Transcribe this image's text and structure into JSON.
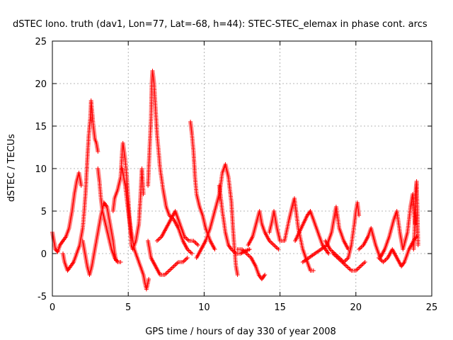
{
  "chart_data": {
    "type": "scatter",
    "title": "dSTEC Iono. truth (dav1, Lon=77, Lat=-68, h=44): STEC-STEC_elemax in phase cont. arcs",
    "xlabel": "GPS time / hours of day 330 of year 2008",
    "ylabel": "dSTEC  / TECUs",
    "xlim": [
      0,
      25
    ],
    "ylim": [
      -5,
      25
    ],
    "xticks": [
      0,
      5,
      10,
      15,
      20,
      25
    ],
    "yticks": [
      -5,
      0,
      5,
      10,
      15,
      20,
      25
    ],
    "grid": true,
    "marker": "+",
    "series": [
      {
        "name": "dSTEC",
        "color": "#ff0000",
        "arcs": [
          [
            [
              0.0,
              2.5
            ],
            [
              0.1,
              1.5
            ],
            [
              0.2,
              0.5
            ],
            [
              0.35,
              0.2
            ],
            [
              0.5,
              1.0
            ],
            [
              0.7,
              1.5
            ],
            [
              0.9,
              2.0
            ],
            [
              1.1,
              3.0
            ],
            [
              1.3,
              5.0
            ],
            [
              1.45,
              7.0
            ],
            [
              1.6,
              8.5
            ],
            [
              1.75,
              9.5
            ],
            [
              1.9,
              8.0
            ]
          ],
          [
            [
              0.7,
              0.0
            ],
            [
              0.8,
              -1.0
            ],
            [
              0.9,
              -1.5
            ],
            [
              1.0,
              -2.0
            ],
            [
              1.2,
              -1.5
            ],
            [
              1.4,
              -1.0
            ],
            [
              1.6,
              0.0
            ],
            [
              1.8,
              1.0
            ],
            [
              2.0,
              3.0
            ],
            [
              2.1,
              5.0
            ],
            [
              2.2,
              7.5
            ],
            [
              2.3,
              11.0
            ],
            [
              2.4,
              14.0
            ],
            [
              2.5,
              16.0
            ],
            [
              2.55,
              18.0
            ],
            [
              2.7,
              15.0
            ],
            [
              2.8,
              13.5
            ],
            [
              2.9,
              13.0
            ],
            [
              3.0,
              12.0
            ]
          ],
          [
            [
              2.0,
              1.5
            ],
            [
              2.1,
              0.5
            ],
            [
              2.2,
              -0.5
            ],
            [
              2.3,
              -1.5
            ],
            [
              2.45,
              -2.5
            ],
            [
              2.6,
              -1.5
            ],
            [
              2.8,
              0.5
            ],
            [
              3.0,
              2.5
            ],
            [
              3.2,
              4.5
            ],
            [
              3.4,
              6.0
            ],
            [
              3.6,
              5.5
            ],
            [
              3.8,
              3.5
            ],
            [
              4.0,
              1.5
            ],
            [
              4.1,
              0.0
            ],
            [
              4.2,
              -0.8
            ]
          ],
          [
            [
              3.0,
              10.0
            ],
            [
              3.1,
              8.5
            ],
            [
              3.2,
              6.5
            ],
            [
              3.3,
              5.0
            ],
            [
              3.5,
              3.5
            ],
            [
              3.7,
              2.0
            ],
            [
              3.9,
              0.5
            ],
            [
              4.1,
              -0.5
            ],
            [
              4.3,
              -1.0
            ],
            [
              4.5,
              -1.0
            ]
          ],
          [
            [
              4.0,
              5.0
            ],
            [
              4.1,
              6.5
            ],
            [
              4.3,
              7.5
            ],
            [
              4.5,
              9.0
            ],
            [
              4.6,
              12.0
            ],
            [
              4.65,
              13.0
            ],
            [
              4.8,
              11.0
            ],
            [
              4.9,
              9.0
            ],
            [
              5.0,
              6.5
            ],
            [
              5.1,
              3.5
            ],
            [
              5.2,
              1.0
            ],
            [
              5.3,
              0.5
            ],
            [
              5.5,
              1.5
            ],
            [
              5.7,
              3.5
            ],
            [
              5.8,
              6.5
            ],
            [
              5.9,
              10.0
            ],
            [
              6.0,
              7.0
            ]
          ],
          [
            [
              4.6,
              10.0
            ],
            [
              4.8,
              8.0
            ],
            [
              5.0,
              5.0
            ],
            [
              5.2,
              2.5
            ],
            [
              5.4,
              0.5
            ],
            [
              5.6,
              -0.5
            ],
            [
              5.8,
              -1.5
            ],
            [
              6.0,
              -2.5
            ],
            [
              6.1,
              -3.5
            ],
            [
              6.2,
              -4.2
            ],
            [
              6.35,
              -3.0
            ]
          ],
          [
            [
              6.3,
              8.0
            ],
            [
              6.4,
              12.0
            ],
            [
              6.5,
              16.0
            ],
            [
              6.55,
              20.0
            ],
            [
              6.6,
              21.5
            ],
            [
              6.7,
              20.0
            ],
            [
              6.8,
              17.0
            ],
            [
              6.9,
              14.0
            ],
            [
              7.0,
              12.0
            ],
            [
              7.1,
              10.0
            ],
            [
              7.3,
              7.5
            ],
            [
              7.5,
              5.5
            ],
            [
              7.7,
              4.5
            ],
            [
              8.0,
              4.0
            ],
            [
              8.3,
              3.0
            ],
            [
              8.6,
              1.5
            ],
            [
              8.9,
              0.5
            ],
            [
              9.2,
              0.0
            ]
          ],
          [
            [
              6.3,
              1.5
            ],
            [
              6.5,
              -0.5
            ],
            [
              6.8,
              -1.5
            ],
            [
              7.1,
              -2.5
            ],
            [
              7.4,
              -2.5
            ],
            [
              7.7,
              -2.0
            ],
            [
              8.0,
              -1.5
            ],
            [
              8.3,
              -1.0
            ],
            [
              8.6,
              -1.0
            ],
            [
              8.9,
              -0.5
            ]
          ],
          [
            [
              6.9,
              1.5
            ],
            [
              7.2,
              2.0
            ],
            [
              7.5,
              3.0
            ],
            [
              7.8,
              4.0
            ],
            [
              8.1,
              5.0
            ],
            [
              8.4,
              3.5
            ],
            [
              8.7,
              2.0
            ],
            [
              9.0,
              1.5
            ],
            [
              9.3,
              1.5
            ],
            [
              9.6,
              1.0
            ]
          ],
          [
            [
              9.1,
              15.5
            ],
            [
              9.2,
              14.0
            ],
            [
              9.3,
              12.0
            ],
            [
              9.4,
              9.0
            ],
            [
              9.5,
              7.0
            ],
            [
              9.7,
              5.5
            ],
            [
              9.9,
              4.5
            ],
            [
              10.1,
              3.0
            ],
            [
              10.4,
              1.5
            ],
            [
              10.7,
              0.5
            ]
          ],
          [
            [
              9.5,
              -0.5
            ],
            [
              9.8,
              0.5
            ],
            [
              10.1,
              1.5
            ],
            [
              10.4,
              3.0
            ],
            [
              10.7,
              5.0
            ],
            [
              11.0,
              7.0
            ],
            [
              11.2,
              9.5
            ],
            [
              11.4,
              10.5
            ],
            [
              11.6,
              9.0
            ],
            [
              11.8,
              6.0
            ],
            [
              11.9,
              3.0
            ],
            [
              12.0,
              0.5
            ],
            [
              12.1,
              -1.5
            ],
            [
              12.2,
              -2.5
            ]
          ],
          [
            [
              11.0,
              8.0
            ],
            [
              11.2,
              5.0
            ],
            [
              11.4,
              2.5
            ],
            [
              11.6,
              1.0
            ],
            [
              11.8,
              0.5
            ],
            [
              12.1,
              0.0
            ],
            [
              12.4,
              0.0
            ],
            [
              12.7,
              0.3
            ],
            [
              13.0,
              0.5
            ]
          ],
          [
            [
              12.2,
              0.5
            ],
            [
              12.5,
              0.5
            ],
            [
              12.8,
              0.0
            ],
            [
              13.1,
              -0.5
            ],
            [
              13.4,
              -1.5
            ],
            [
              13.6,
              -2.5
            ],
            [
              13.8,
              -3.0
            ],
            [
              14.0,
              -2.5
            ]
          ],
          [
            [
              12.9,
              1.0
            ],
            [
              13.2,
              2.0
            ],
            [
              13.5,
              4.0
            ],
            [
              13.65,
              5.0
            ],
            [
              13.8,
              3.5
            ],
            [
              14.0,
              2.5
            ],
            [
              14.3,
              1.5
            ],
            [
              14.6,
              1.0
            ],
            [
              14.9,
              0.5
            ]
          ],
          [
            [
              14.3,
              2.5
            ],
            [
              14.5,
              4.0
            ],
            [
              14.6,
              5.0
            ],
            [
              14.8,
              3.0
            ],
            [
              15.0,
              1.5
            ],
            [
              15.3,
              1.5
            ],
            [
              15.6,
              4.0
            ],
            [
              15.8,
              5.5
            ],
            [
              15.95,
              6.5
            ],
            [
              16.2,
              3.0
            ],
            [
              16.5,
              0.5
            ],
            [
              16.8,
              -1.0
            ],
            [
              17.0,
              -2.0
            ],
            [
              17.2,
              -2.0
            ]
          ],
          [
            [
              16.0,
              1.5
            ],
            [
              16.4,
              3.0
            ],
            [
              16.8,
              4.5
            ],
            [
              17.0,
              5.0
            ],
            [
              17.3,
              3.5
            ],
            [
              17.6,
              2.0
            ],
            [
              17.8,
              1.0
            ],
            [
              18.0,
              0.5
            ],
            [
              18.2,
              0.0
            ]
          ],
          [
            [
              16.5,
              -1.0
            ],
            [
              16.9,
              -0.5
            ],
            [
              17.3,
              0.0
            ],
            [
              17.7,
              0.5
            ],
            [
              18.1,
              1.0
            ],
            [
              18.4,
              2.5
            ],
            [
              18.6,
              4.5
            ],
            [
              18.7,
              5.5
            ],
            [
              18.9,
              3.0
            ],
            [
              19.2,
              1.5
            ],
            [
              19.5,
              0.5
            ]
          ],
          [
            [
              18.0,
              1.5
            ],
            [
              18.3,
              0.5
            ],
            [
              18.6,
              0.0
            ],
            [
              18.9,
              -0.5
            ],
            [
              19.2,
              -1.0
            ],
            [
              19.5,
              -0.5
            ],
            [
              19.7,
              1.0
            ],
            [
              19.9,
              3.5
            ],
            [
              20.0,
              5.0
            ],
            [
              20.1,
              6.0
            ],
            [
              20.2,
              4.5
            ]
          ],
          [
            [
              18.5,
              0.0
            ],
            [
              18.8,
              -0.5
            ],
            [
              19.1,
              -1.0
            ],
            [
              19.4,
              -1.5
            ],
            [
              19.7,
              -2.0
            ],
            [
              20.0,
              -2.0
            ],
            [
              20.3,
              -1.5
            ],
            [
              20.6,
              -1.0
            ]
          ],
          [
            [
              20.2,
              0.5
            ],
            [
              20.5,
              1.0
            ],
            [
              20.8,
              2.0
            ],
            [
              21.0,
              3.0
            ],
            [
              21.3,
              1.0
            ],
            [
              21.6,
              -0.5
            ],
            [
              21.9,
              0.5
            ],
            [
              22.2,
              2.0
            ],
            [
              22.5,
              4.0
            ],
            [
              22.7,
              5.0
            ],
            [
              22.9,
              2.5
            ],
            [
              23.1,
              0.5
            ],
            [
              23.4,
              2.5
            ],
            [
              23.6,
              5.5
            ],
            [
              23.75,
              7.0
            ],
            [
              23.9,
              3.5
            ]
          ],
          [
            [
              21.5,
              -0.5
            ],
            [
              21.8,
              -1.0
            ],
            [
              22.1,
              -0.5
            ],
            [
              22.4,
              0.5
            ],
            [
              22.7,
              -0.5
            ],
            [
              23.0,
              -1.5
            ],
            [
              23.2,
              -1.0
            ],
            [
              23.5,
              0.5
            ],
            [
              23.8,
              1.5
            ],
            [
              24.0,
              2.0
            ]
          ],
          [
            [
              23.8,
              0.5
            ],
            [
              23.85,
              2.0
            ],
            [
              23.9,
              4.5
            ],
            [
              23.95,
              7.5
            ],
            [
              24.0,
              8.5
            ],
            [
              24.05,
              5.0
            ],
            [
              24.1,
              1.0
            ]
          ]
        ]
      }
    ]
  }
}
